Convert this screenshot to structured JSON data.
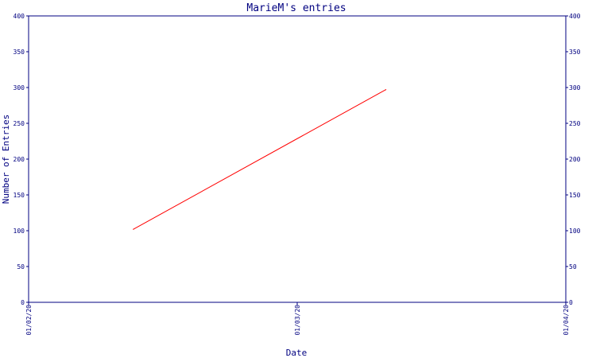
{
  "chart_data": {
    "type": "line",
    "title": "MarieM's entries",
    "xlabel": "Date",
    "ylabel": "Number of Entries",
    "ylim": [
      0,
      400
    ],
    "y_ticks": [
      "0",
      "50",
      "100",
      "150",
      "200",
      "250",
      "300",
      "350",
      "400"
    ],
    "x_ticks": [
      "01/02/20",
      "01/03/20",
      "01/04/20"
    ],
    "series": [
      {
        "x": [
          "01/02/20 + 0.39",
          "01/03/20 + 0.33"
        ],
        "values": [
          102,
          297
        ]
      }
    ],
    "line_color": "#ff0000",
    "axis_color": "#000080",
    "grid": false
  }
}
